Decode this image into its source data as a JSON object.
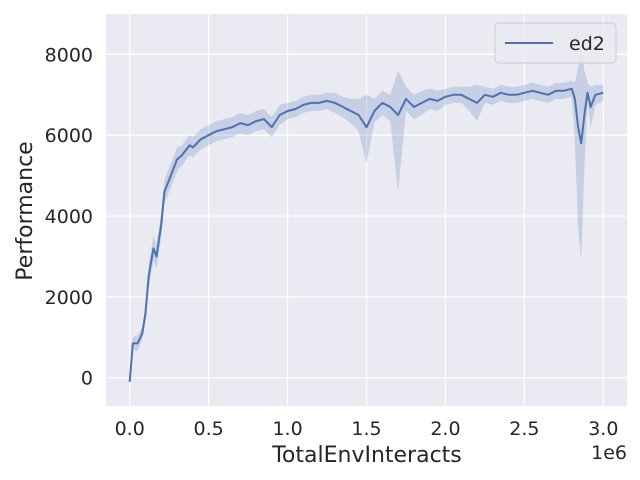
{
  "chart_data": {
    "type": "line",
    "title": "",
    "xlabel": "TotalEnvInteracts",
    "ylabel": "Performance",
    "x_offset_label": "1e6",
    "xlim": [
      -0.15,
      3.15
    ],
    "ylim": [
      -700,
      9000
    ],
    "x_ticks": [
      0.0,
      0.5,
      1.0,
      1.5,
      2.0,
      2.5,
      3.0
    ],
    "x_tick_labels": [
      "0.0",
      "0.5",
      "1.0",
      "1.5",
      "2.0",
      "2.5",
      "3.0"
    ],
    "y_ticks": [
      0,
      2000,
      4000,
      6000,
      8000
    ],
    "y_tick_labels": [
      "0",
      "2000",
      "4000",
      "6000",
      "8000"
    ],
    "grid": true,
    "legend": {
      "position": "top-right",
      "entries": [
        "ed2"
      ]
    },
    "colors": {
      "background": "#eaeaf2",
      "grid": "#ffffff",
      "line": "#4c72b0",
      "band": "#4c72b0"
    },
    "series": [
      {
        "name": "ed2",
        "x": [
          0.0,
          0.02,
          0.05,
          0.08,
          0.1,
          0.12,
          0.15,
          0.17,
          0.2,
          0.22,
          0.25,
          0.28,
          0.3,
          0.33,
          0.35,
          0.38,
          0.4,
          0.45,
          0.5,
          0.55,
          0.6,
          0.65,
          0.7,
          0.75,
          0.8,
          0.85,
          0.9,
          0.95,
          1.0,
          1.05,
          1.1,
          1.15,
          1.2,
          1.25,
          1.3,
          1.35,
          1.4,
          1.45,
          1.5,
          1.55,
          1.6,
          1.65,
          1.7,
          1.75,
          1.8,
          1.85,
          1.9,
          1.95,
          2.0,
          2.05,
          2.1,
          2.15,
          2.2,
          2.25,
          2.3,
          2.35,
          2.4,
          2.45,
          2.5,
          2.55,
          2.6,
          2.65,
          2.7,
          2.75,
          2.8,
          2.82,
          2.84,
          2.86,
          2.88,
          2.9,
          2.92,
          2.95,
          3.0
        ],
        "y": [
          -100,
          850,
          850,
          1100,
          1600,
          2500,
          3200,
          3000,
          3800,
          4600,
          4900,
          5200,
          5400,
          5500,
          5600,
          5750,
          5700,
          5900,
          6000,
          6100,
          6150,
          6200,
          6300,
          6250,
          6350,
          6400,
          6200,
          6500,
          6600,
          6650,
          6750,
          6800,
          6800,
          6850,
          6800,
          6700,
          6600,
          6500,
          6200,
          6600,
          6800,
          6700,
          6500,
          6900,
          6700,
          6800,
          6900,
          6850,
          6950,
          7000,
          7000,
          6900,
          6800,
          7000,
          6950,
          7050,
          7000,
          7000,
          7050,
          7100,
          7050,
          7000,
          7100,
          7100,
          7150,
          6900,
          6200,
          5800,
          6500,
          7050,
          6700,
          7000,
          7050
        ],
        "y_low": [
          -200,
          700,
          650,
          950,
          1400,
          2200,
          2900,
          2700,
          3500,
          4300,
          4600,
          4900,
          5100,
          5250,
          5350,
          5500,
          5450,
          5650,
          5750,
          5850,
          5900,
          5950,
          6050,
          6000,
          6100,
          6150,
          5950,
          6250,
          6400,
          6450,
          6550,
          6600,
          6600,
          6650,
          6550,
          6450,
          6300,
          6100,
          5300,
          6300,
          6500,
          6350,
          4600,
          6600,
          6400,
          6500,
          6650,
          6600,
          6750,
          6800,
          6800,
          6600,
          6350,
          6800,
          6750,
          6850,
          6800,
          6800,
          6850,
          6900,
          6850,
          6800,
          6900,
          6900,
          6950,
          5800,
          3700,
          2900,
          5200,
          6800,
          6200,
          6750,
          6850
        ],
        "y_high": [
          0,
          1000,
          1050,
          1250,
          1800,
          2800,
          3500,
          3300,
          4100,
          4900,
          5200,
          5500,
          5700,
          5750,
          5850,
          6000,
          5950,
          6150,
          6250,
          6350,
          6400,
          6450,
          6550,
          6500,
          6600,
          6650,
          6450,
          6750,
          6800,
          6850,
          6950,
          7000,
          7000,
          7050,
          7050,
          6950,
          6900,
          6900,
          7000,
          6900,
          7100,
          7000,
          7600,
          7200,
          7000,
          7100,
          7150,
          7100,
          7150,
          7200,
          7200,
          7200,
          7250,
          7200,
          7150,
          7250,
          7200,
          7200,
          7250,
          7300,
          7250,
          7200,
          7300,
          7300,
          7350,
          7300,
          7700,
          8200,
          7600,
          7300,
          7200,
          7250,
          7250
        ]
      }
    ]
  }
}
